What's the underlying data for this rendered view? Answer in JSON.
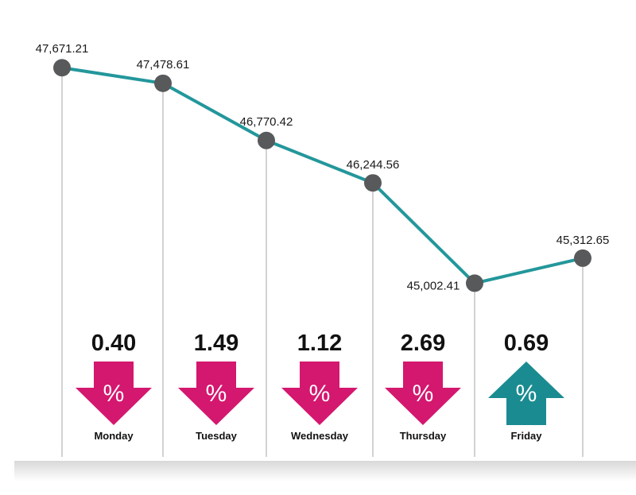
{
  "colors": {
    "line": "#23979b",
    "marker": "#58595b",
    "down": "#d4176f",
    "up": "#1a8c91",
    "guide": "#b5b5b5"
  },
  "percent_symbol": "%",
  "chart_data": {
    "type": "line",
    "categories": [
      "Monday",
      "Tuesday",
      "Wednesday",
      "Thursday",
      "Friday"
    ],
    "x": [
      0,
      1,
      2,
      3,
      4,
      5
    ],
    "values": [
      47671.21,
      47478.61,
      46770.42,
      46244.56,
      45002.41,
      45312.65
    ],
    "value_labels": [
      "47,671.21",
      "47,478.61",
      "46,770.42",
      "46,244.56",
      "45,002.41",
      "45,312.65"
    ],
    "ylim": [
      44800,
      47900
    ],
    "daily_change": [
      {
        "day": "Monday",
        "pct": "0.40",
        "direction": "down"
      },
      {
        "day": "Tuesday",
        "pct": "1.49",
        "direction": "down"
      },
      {
        "day": "Wednesday",
        "pct": "1.12",
        "direction": "down"
      },
      {
        "day": "Thursday",
        "pct": "2.69",
        "direction": "down"
      },
      {
        "day": "Friday",
        "pct": "0.69",
        "direction": "up"
      }
    ],
    "grid": false,
    "legend": "none"
  }
}
